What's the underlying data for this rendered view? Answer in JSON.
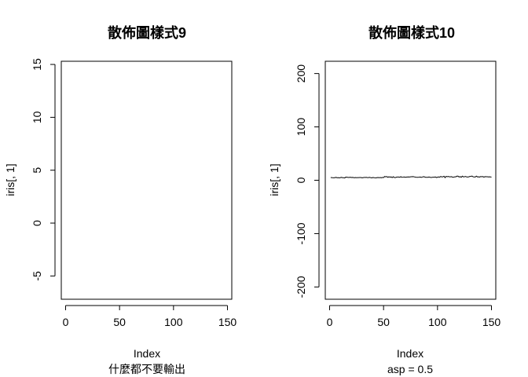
{
  "chart_data": [
    {
      "type": "line",
      "title": "散佈圖樣式9",
      "xlabel": "Index",
      "ylabel": "iris[, 1]",
      "sub": "什麼都不要輸出",
      "xlim": [
        -4,
        154
      ],
      "ylim": [
        -7.2,
        15.3
      ],
      "xticks": [
        0,
        50,
        100,
        150
      ],
      "yticks": [
        -5,
        0,
        5,
        10,
        15
      ],
      "series": []
    },
    {
      "type": "line",
      "title": "散佈圖樣式10",
      "xlabel": "Index",
      "ylabel": "iris[, 1]",
      "sub": "asp = 0.5",
      "xlim": [
        -4,
        154
      ],
      "ylim": [
        -223,
        223
      ],
      "xticks": [
        0,
        50,
        100,
        150
      ],
      "yticks": [
        -200,
        -100,
        0,
        100,
        200
      ],
      "series": [
        {
          "x_start": 1,
          "values": [
            5.1,
            4.9,
            4.7,
            4.6,
            5.0,
            5.4,
            4.6,
            5.0,
            4.4,
            4.9,
            5.4,
            4.8,
            4.8,
            4.3,
            5.8,
            5.7,
            5.4,
            5.1,
            5.7,
            5.1,
            5.4,
            5.1,
            4.6,
            5.1,
            4.8,
            5.0,
            5.0,
            5.2,
            5.2,
            4.7,
            4.8,
            5.4,
            5.2,
            5.5,
            4.9,
            5.0,
            5.5,
            4.9,
            4.4,
            5.1,
            5.0,
            4.5,
            4.4,
            5.0,
            5.1,
            4.8,
            5.1,
            4.6,
            5.3,
            5.0,
            7.0,
            6.4,
            6.9,
            5.5,
            6.5,
            5.7,
            6.3,
            4.9,
            6.6,
            5.2,
            5.0,
            5.9,
            6.0,
            6.1,
            5.6,
            6.7,
            5.6,
            5.8,
            6.2,
            5.6,
            5.9,
            6.1,
            6.3,
            6.1,
            6.4,
            6.6,
            6.8,
            6.7,
            6.0,
            5.7,
            5.5,
            5.5,
            5.8,
            6.0,
            5.4,
            6.0,
            6.7,
            6.3,
            5.6,
            5.5,
            5.5,
            6.1,
            5.8,
            5.0,
            5.6,
            5.7,
            5.7,
            6.2,
            5.1,
            5.7,
            6.3,
            5.8,
            7.1,
            6.3,
            6.5,
            7.6,
            4.9,
            7.3,
            6.7,
            7.2,
            6.5,
            6.4,
            6.8,
            5.7,
            5.8,
            6.4,
            6.5,
            7.7,
            7.7,
            6.0,
            6.9,
            5.6,
            7.7,
            6.3,
            6.7,
            7.2,
            6.2,
            6.1,
            6.4,
            7.2,
            7.4,
            7.9,
            6.4,
            6.3,
            6.1,
            7.7,
            6.3,
            6.4,
            6.0,
            6.9,
            6.7,
            6.9,
            5.8,
            6.8,
            6.7,
            6.7,
            6.3,
            6.5,
            6.2,
            5.9
          ]
        }
      ]
    }
  ]
}
